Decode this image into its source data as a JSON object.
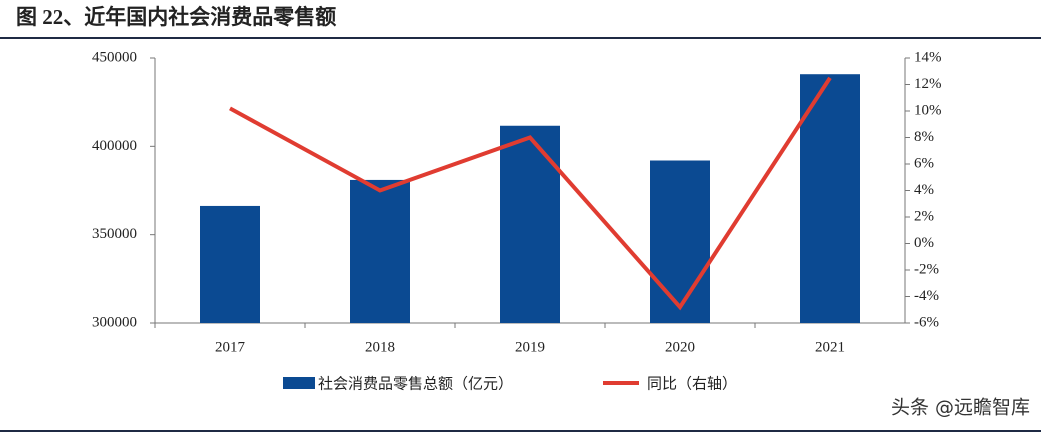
{
  "chart_data": {
    "type": "bar-line",
    "title": "图 22、近年国内社会消费品零售额",
    "categories": [
      "2017",
      "2018",
      "2019",
      "2020",
      "2021"
    ],
    "series": [
      {
        "name": "社会消费品零售总额（亿元）",
        "color": "#0b4a92",
        "type": "bar",
        "values": [
          366262,
          380987,
          411649,
          391981,
          440823
        ]
      },
      {
        "name": "同比（右轴）",
        "color": "#e03c31",
        "type": "line",
        "axis": "y2",
        "values": [
          10.2,
          4.0,
          8.0,
          -4.8,
          12.5
        ]
      }
    ],
    "ylim": [
      300000,
      450000
    ],
    "yticks": [
      300000,
      350000,
      400000,
      450000
    ],
    "y2lim": [
      -6,
      14
    ],
    "y2ticks": [
      {
        "value": -6,
        "label": "-6%"
      },
      {
        "value": -4,
        "label": "-4%"
      },
      {
        "value": -2,
        "label": "-2%"
      },
      {
        "value": 0,
        "label": "0%"
      },
      {
        "value": 2,
        "label": "2%"
      },
      {
        "value": 4,
        "label": "4%"
      },
      {
        "value": 6,
        "label": "6%"
      },
      {
        "value": 8,
        "label": "8%"
      },
      {
        "value": 10,
        "label": "10%"
      },
      {
        "value": 12,
        "label": "12%"
      },
      {
        "value": 14,
        "label": "14%"
      }
    ],
    "grid": false,
    "legend": "bottom"
  },
  "watermark": "头条 @远瞻智库"
}
